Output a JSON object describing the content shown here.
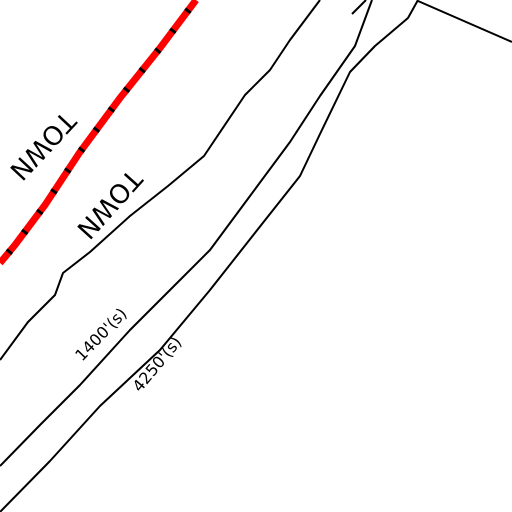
{
  "labels": {
    "town_1": "TOWN",
    "town_2": "TOWN",
    "road_1": "1400'(s)",
    "road_2": "4250'(s)"
  }
}
